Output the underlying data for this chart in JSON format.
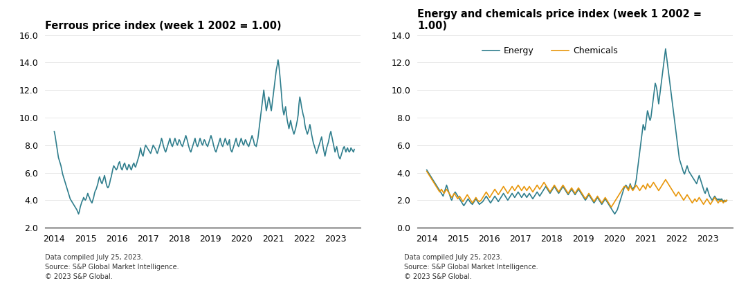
{
  "ferrous_title": "Ferrous price index (week 1 2002 = 1.00)",
  "energy_chem_title": "Energy and chemicals price index (week 1 2002 =\n1.00)",
  "ferrous_color": "#2E7D8C",
  "energy_color": "#2E7D8C",
  "chemicals_color": "#E8960A",
  "ferrous_ylim": [
    2.0,
    16.0
  ],
  "ferrous_yticks": [
    2.0,
    4.0,
    6.0,
    8.0,
    10.0,
    12.0,
    14.0,
    16.0
  ],
  "energy_chem_ylim": [
    0.0,
    14.0
  ],
  "energy_chem_yticks": [
    0.0,
    2.0,
    4.0,
    6.0,
    8.0,
    10.0,
    12.0,
    14.0
  ],
  "footnote": "Data compiled July 25, 2023.\nSource: S&P Global Market Intelligence.\n© 2023 S&P Global.",
  "xlabel_years": [
    2014,
    2015,
    2016,
    2017,
    2018,
    2019,
    2020,
    2021,
    2022,
    2023
  ],
  "ferrous_data": [
    9.0,
    8.7,
    8.3,
    7.9,
    7.5,
    7.1,
    6.9,
    6.7,
    6.5,
    6.2,
    5.9,
    5.7,
    5.5,
    5.3,
    5.1,
    4.9,
    4.7,
    4.5,
    4.3,
    4.1,
    4.0,
    3.9,
    3.8,
    3.7,
    3.6,
    3.5,
    3.4,
    3.3,
    3.15,
    3.0,
    3.2,
    3.5,
    3.7,
    3.9,
    4.0,
    4.2,
    4.1,
    4.0,
    4.1,
    4.3,
    4.5,
    4.3,
    4.2,
    4.0,
    3.9,
    3.8,
    4.0,
    4.2,
    4.5,
    4.7,
    4.8,
    5.0,
    5.2,
    5.5,
    5.7,
    5.5,
    5.3,
    5.2,
    5.4,
    5.6,
    5.8,
    5.5,
    5.2,
    5.0,
    4.9,
    5.0,
    5.2,
    5.5,
    5.7,
    6.0,
    6.3,
    6.5,
    6.4,
    6.3,
    6.2,
    6.3,
    6.5,
    6.7,
    6.8,
    6.5,
    6.3,
    6.2,
    6.4,
    6.6,
    6.7,
    6.5,
    6.3,
    6.2,
    6.4,
    6.6,
    6.5,
    6.3,
    6.2,
    6.4,
    6.6,
    6.7,
    6.5,
    6.4,
    6.6,
    6.8,
    7.0,
    7.2,
    7.5,
    7.8,
    7.5,
    7.3,
    7.2,
    7.5,
    7.8,
    8.0,
    7.9,
    7.8,
    7.7,
    7.6,
    7.5,
    7.4,
    7.6,
    7.8,
    8.0,
    7.9,
    7.8,
    7.7,
    7.5,
    7.4,
    7.6,
    7.8,
    8.0,
    8.2,
    8.5,
    8.3,
    8.0,
    7.8,
    7.6,
    7.5,
    7.7,
    7.9,
    8.1,
    8.3,
    8.5,
    8.2,
    8.0,
    7.9,
    8.1,
    8.3,
    8.5,
    8.3,
    8.1,
    8.0,
    8.2,
    8.4,
    8.3,
    8.1,
    8.0,
    7.9,
    8.1,
    8.3,
    8.5,
    8.7,
    8.5,
    8.3,
    8.0,
    7.8,
    7.6,
    7.5,
    7.7,
    7.9,
    8.1,
    8.3,
    8.5,
    8.2,
    8.0,
    7.9,
    8.1,
    8.3,
    8.5,
    8.3,
    8.1,
    8.0,
    8.2,
    8.4,
    8.3,
    8.1,
    8.0,
    7.9,
    8.1,
    8.3,
    8.5,
    8.7,
    8.5,
    8.3,
    8.0,
    7.8,
    7.6,
    7.5,
    7.7,
    7.9,
    8.1,
    8.3,
    8.5,
    8.2,
    8.0,
    7.9,
    8.1,
    8.3,
    8.5,
    8.3,
    8.1,
    8.0,
    8.2,
    8.4,
    7.8,
    7.6,
    7.5,
    7.7,
    7.9,
    8.1,
    8.3,
    8.5,
    8.2,
    8.0,
    7.9,
    8.1,
    8.3,
    8.5,
    8.3,
    8.1,
    8.0,
    8.2,
    8.4,
    8.3,
    8.1,
    8.0,
    7.9,
    8.1,
    8.3,
    8.5,
    8.7,
    8.5,
    8.3,
    8.0,
    8.0,
    7.9,
    8.2,
    8.5,
    9.0,
    9.5,
    10.0,
    10.5,
    11.0,
    11.5,
    12.0,
    11.5,
    11.0,
    10.5,
    10.8,
    11.2,
    11.5,
    11.2,
    10.8,
    10.5,
    11.0,
    11.5,
    12.0,
    12.5,
    13.0,
    13.5,
    13.8,
    14.2,
    13.8,
    13.2,
    12.5,
    11.8,
    11.0,
    10.5,
    10.2,
    10.5,
    10.8,
    10.3,
    9.8,
    9.5,
    9.2,
    9.5,
    9.8,
    9.5,
    9.2,
    9.0,
    8.8,
    9.0,
    9.2,
    9.5,
    9.8,
    10.2,
    11.0,
    11.5,
    11.2,
    10.8,
    10.5,
    10.2,
    10.0,
    9.5,
    9.2,
    9.0,
    8.8,
    9.0,
    9.2,
    9.5,
    9.2,
    8.8,
    8.5,
    8.2,
    8.0,
    7.8,
    7.6,
    7.4,
    7.6,
    7.8,
    8.0,
    8.2,
    8.4,
    8.6,
    8.2,
    7.8,
    7.5,
    7.2,
    7.5,
    7.8,
    8.0,
    8.2,
    8.5,
    8.8,
    9.0,
    8.7,
    8.4,
    8.1,
    7.8,
    7.5,
    7.7,
    7.9,
    7.6,
    7.3,
    7.1,
    7.0,
    7.2,
    7.4,
    7.6,
    7.8,
    7.9,
    7.7,
    7.5,
    7.7,
    7.8,
    7.6,
    7.5,
    7.6,
    7.8,
    7.7,
    7.6,
    7.5,
    7.7
  ],
  "energy_data": [
    4.2,
    4.1,
    4.0,
    3.9,
    3.8,
    3.7,
    3.6,
    3.5,
    3.4,
    3.3,
    3.2,
    3.1,
    3.0,
    2.9,
    2.8,
    2.7,
    2.6,
    2.5,
    2.4,
    2.3,
    2.5,
    2.7,
    2.9,
    3.1,
    2.9,
    2.7,
    2.5,
    2.3,
    2.1,
    2.0,
    2.2,
    2.4,
    2.5,
    2.6,
    2.5,
    2.4,
    2.3,
    2.2,
    2.1,
    2.0,
    1.9,
    1.8,
    1.7,
    1.6,
    1.7,
    1.8,
    1.9,
    2.0,
    2.1,
    2.0,
    1.9,
    1.8,
    1.75,
    1.7,
    1.8,
    1.9,
    2.0,
    2.1,
    2.0,
    1.9,
    1.8,
    1.7,
    1.75,
    1.8,
    1.85,
    1.9,
    2.0,
    2.1,
    2.2,
    2.3,
    2.2,
    2.1,
    2.0,
    1.9,
    1.8,
    1.9,
    2.0,
    2.1,
    2.2,
    2.3,
    2.2,
    2.1,
    2.0,
    1.9,
    2.0,
    2.1,
    2.2,
    2.3,
    2.4,
    2.5,
    2.4,
    2.3,
    2.2,
    2.1,
    2.0,
    2.1,
    2.2,
    2.3,
    2.4,
    2.5,
    2.4,
    2.3,
    2.2,
    2.3,
    2.4,
    2.5,
    2.6,
    2.5,
    2.4,
    2.3,
    2.2,
    2.3,
    2.4,
    2.5,
    2.4,
    2.3,
    2.2,
    2.3,
    2.4,
    2.5,
    2.4,
    2.3,
    2.2,
    2.1,
    2.2,
    2.3,
    2.4,
    2.5,
    2.6,
    2.5,
    2.4,
    2.3,
    2.4,
    2.5,
    2.6,
    2.7,
    2.8,
    2.9,
    3.0,
    2.9,
    2.8,
    2.7,
    2.6,
    2.5,
    2.6,
    2.7,
    2.8,
    2.9,
    3.0,
    2.9,
    2.8,
    2.7,
    2.6,
    2.5,
    2.6,
    2.7,
    2.8,
    2.9,
    3.0,
    2.9,
    2.8,
    2.7,
    2.6,
    2.5,
    2.4,
    2.5,
    2.6,
    2.7,
    2.8,
    2.7,
    2.6,
    2.5,
    2.4,
    2.5,
    2.6,
    2.7,
    2.8,
    2.7,
    2.6,
    2.5,
    2.4,
    2.3,
    2.2,
    2.1,
    2.0,
    2.1,
    2.2,
    2.3,
    2.4,
    2.3,
    2.2,
    2.1,
    2.0,
    1.9,
    1.8,
    1.9,
    2.0,
    2.1,
    2.2,
    2.1,
    2.0,
    1.9,
    1.8,
    1.7,
    1.8,
    1.9,
    2.0,
    2.1,
    2.0,
    1.9,
    1.8,
    1.7,
    1.6,
    1.5,
    1.4,
    1.3,
    1.2,
    1.1,
    1.0,
    1.1,
    1.2,
    1.3,
    1.5,
    1.7,
    1.9,
    2.1,
    2.3,
    2.5,
    2.7,
    2.9,
    3.0,
    3.1,
    3.0,
    2.9,
    2.8,
    3.0,
    3.2,
    3.0,
    2.9,
    2.8,
    2.9,
    3.0,
    3.2,
    3.5,
    4.0,
    4.5,
    5.0,
    5.5,
    6.0,
    6.5,
    7.0,
    7.5,
    7.3,
    7.1,
    7.5,
    8.0,
    8.5,
    8.3,
    8.0,
    7.8,
    8.0,
    8.5,
    9.0,
    9.5,
    10.0,
    10.5,
    10.3,
    10.0,
    9.5,
    9.0,
    9.5,
    10.0,
    10.5,
    11.0,
    11.5,
    12.0,
    12.5,
    13.0,
    12.5,
    12.0,
    11.5,
    11.0,
    10.5,
    10.0,
    9.5,
    9.0,
    8.5,
    8.0,
    7.5,
    7.0,
    6.5,
    6.0,
    5.5,
    5.0,
    4.8,
    4.6,
    4.4,
    4.2,
    4.0,
    3.9,
    4.1,
    4.3,
    4.5,
    4.3,
    4.1,
    4.0,
    3.9,
    3.8,
    3.7,
    3.6,
    3.5,
    3.4,
    3.3,
    3.2,
    3.4,
    3.6,
    3.8,
    3.6,
    3.4,
    3.2,
    3.0,
    2.8,
    2.6,
    2.5,
    2.7,
    2.9,
    2.7,
    2.5,
    2.3,
    2.2,
    2.1,
    2.0,
    2.1,
    2.2,
    2.3,
    2.2,
    2.1,
    2.0,
    2.1,
    2.0,
    2.1,
    2.0,
    2.1,
    2.0,
    1.9,
    2.0,
    1.9,
    1.9,
    2.0
  ],
  "chemicals_data": [
    4.1,
    4.0,
    3.9,
    3.8,
    3.7,
    3.6,
    3.5,
    3.4,
    3.3,
    3.2,
    3.1,
    3.0,
    2.9,
    2.8,
    2.7,
    2.6,
    2.7,
    2.8,
    2.7,
    2.6,
    2.5,
    2.6,
    2.7,
    2.8,
    2.7,
    2.6,
    2.5,
    2.4,
    2.3,
    2.2,
    2.3,
    2.4,
    2.5,
    2.4,
    2.3,
    2.2,
    2.1,
    2.2,
    2.3,
    2.2,
    2.1,
    2.0,
    1.9,
    2.0,
    2.1,
    2.2,
    2.3,
    2.4,
    2.3,
    2.2,
    2.1,
    2.0,
    1.9,
    1.8,
    1.9,
    2.0,
    2.1,
    2.2,
    2.1,
    2.0,
    1.95,
    1.9,
    1.95,
    2.0,
    2.1,
    2.2,
    2.3,
    2.4,
    2.5,
    2.6,
    2.5,
    2.4,
    2.3,
    2.2,
    2.3,
    2.4,
    2.5,
    2.6,
    2.7,
    2.8,
    2.7,
    2.6,
    2.5,
    2.4,
    2.5,
    2.6,
    2.7,
    2.8,
    2.9,
    3.0,
    2.9,
    2.8,
    2.7,
    2.6,
    2.5,
    2.6,
    2.7,
    2.8,
    2.9,
    3.0,
    2.9,
    2.8,
    2.7,
    2.8,
    2.9,
    3.0,
    3.1,
    3.0,
    2.9,
    2.8,
    2.7,
    2.8,
    2.9,
    3.0,
    2.9,
    2.8,
    2.7,
    2.8,
    2.9,
    3.0,
    2.9,
    2.8,
    2.7,
    2.6,
    2.7,
    2.8,
    2.9,
    3.0,
    3.1,
    3.0,
    2.9,
    2.8,
    2.9,
    3.0,
    3.1,
    3.2,
    3.3,
    3.2,
    3.1,
    3.0,
    2.9,
    2.8,
    2.7,
    2.6,
    2.7,
    2.8,
    2.9,
    3.0,
    3.1,
    3.0,
    2.9,
    2.8,
    2.7,
    2.6,
    2.7,
    2.8,
    2.9,
    3.0,
    3.1,
    3.0,
    2.9,
    2.8,
    2.7,
    2.6,
    2.5,
    2.6,
    2.7,
    2.8,
    2.9,
    2.8,
    2.7,
    2.6,
    2.5,
    2.6,
    2.7,
    2.8,
    2.9,
    2.8,
    2.7,
    2.6,
    2.5,
    2.4,
    2.3,
    2.2,
    2.1,
    2.2,
    2.3,
    2.4,
    2.5,
    2.4,
    2.3,
    2.2,
    2.1,
    2.0,
    1.9,
    2.0,
    2.1,
    2.2,
    2.3,
    2.2,
    2.1,
    2.0,
    1.9,
    1.8,
    1.9,
    2.0,
    2.1,
    2.2,
    2.1,
    2.0,
    1.9,
    1.8,
    1.7,
    1.6,
    1.5,
    1.6,
    1.7,
    1.8,
    1.9,
    2.0,
    2.1,
    2.2,
    2.3,
    2.4,
    2.5,
    2.6,
    2.7,
    2.8,
    2.9,
    3.0,
    3.0,
    3.0,
    2.9,
    2.8,
    2.7,
    2.9,
    3.1,
    2.9,
    2.8,
    2.7,
    2.8,
    2.9,
    3.0,
    3.1,
    3.0,
    2.9,
    2.8,
    2.7,
    2.8,
    2.9,
    3.0,
    3.1,
    3.0,
    2.9,
    2.8,
    3.0,
    3.2,
    3.1,
    3.0,
    2.9,
    3.0,
    3.1,
    3.2,
    3.3,
    3.2,
    3.1,
    3.0,
    2.9,
    2.8,
    2.7,
    2.8,
    2.9,
    3.0,
    3.1,
    3.2,
    3.3,
    3.4,
    3.5,
    3.4,
    3.3,
    3.2,
    3.1,
    3.0,
    2.9,
    2.8,
    2.7,
    2.6,
    2.5,
    2.4,
    2.3,
    2.4,
    2.5,
    2.6,
    2.5,
    2.4,
    2.3,
    2.2,
    2.1,
    2.0,
    2.1,
    2.2,
    2.3,
    2.4,
    2.3,
    2.2,
    2.1,
    2.0,
    1.9,
    1.8,
    1.9,
    2.0,
    2.1,
    2.0,
    1.9,
    2.0,
    2.1,
    2.2,
    2.1,
    2.0,
    1.9,
    1.8,
    1.7,
    1.8,
    1.9,
    2.0,
    2.1,
    2.0,
    1.9,
    1.8,
    1.7,
    1.8,
    1.9,
    2.0,
    2.1,
    2.2,
    2.1,
    2.0,
    1.9,
    1.8,
    1.9,
    2.0,
    1.9,
    2.0,
    1.9,
    1.8,
    1.9,
    2.0,
    1.9,
    2.0
  ]
}
